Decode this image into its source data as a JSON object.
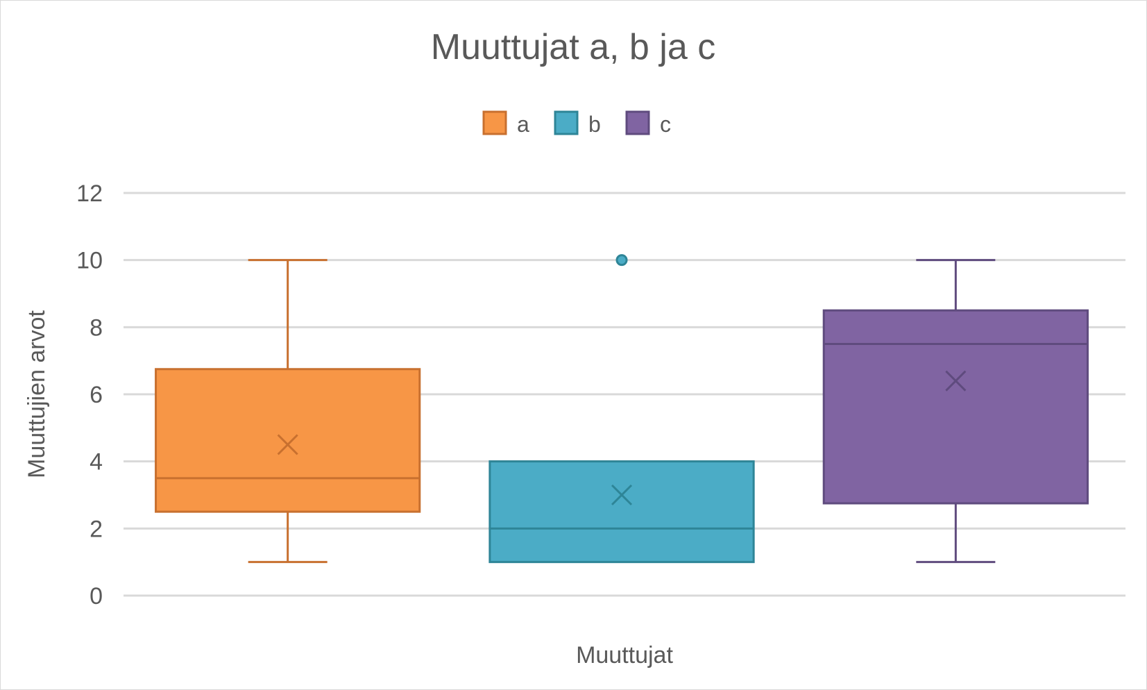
{
  "chart_data": {
    "type": "box",
    "title": "Muuttujat a, b ja c",
    "xlabel": "Muuttujat",
    "ylabel": "Muuttujien arvot",
    "ylim": [
      0,
      12
    ],
    "yticks": [
      0,
      2,
      4,
      6,
      8,
      10,
      12
    ],
    "grid": true,
    "legend_position": "top",
    "series": [
      {
        "name": "a",
        "color": "#F79646",
        "stroke": "#C8702F",
        "min": 1,
        "q1": 2.5,
        "median": 3.5,
        "q3": 6.75,
        "max": 10,
        "mean": 4.5,
        "outliers": []
      },
      {
        "name": "b",
        "color": "#4BACC6",
        "stroke": "#2E8597",
        "min": 1,
        "q1": 1,
        "median": 2,
        "q3": 4,
        "max": 4,
        "mean": 3,
        "outliers": [
          10
        ]
      },
      {
        "name": "c",
        "color": "#8064A2",
        "stroke": "#5F4B7E",
        "min": 1,
        "q1": 2.75,
        "median": 7.5,
        "q3": 8.5,
        "max": 10,
        "mean": 6.4,
        "outliers": []
      }
    ]
  }
}
